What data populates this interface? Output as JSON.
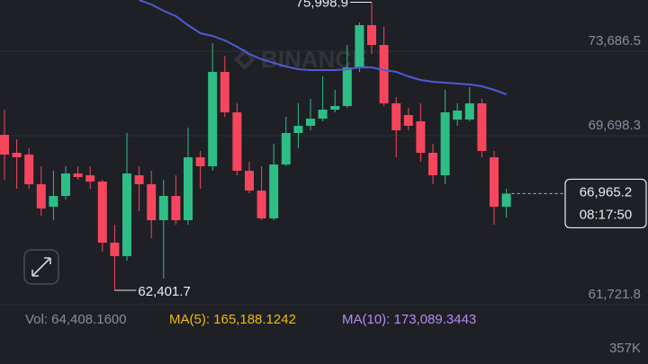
{
  "chart_data": {
    "type": "candlestick",
    "open": [
      69741,
      68892,
      68807,
      67407,
      66346,
      66855,
      67916,
      67831,
      67534,
      64649,
      64012,
      67831,
      67407,
      65710,
      66855,
      65710,
      68680,
      68255,
      72711,
      70801,
      68043,
      67110,
      65795,
      68340,
      69825,
      70165,
      70504,
      70929,
      71098,
      72923,
      74917,
      73984,
      71226,
      70674,
      70377,
      68892,
      67831,
      70462,
      70462,
      71226,
      68680,
      66346
    ],
    "high": [
      70929,
      69528,
      69104,
      68255,
      68043,
      68255,
      68255,
      68255,
      67619,
      65497,
      69825,
      68255,
      68043,
      67619,
      67831,
      70080,
      68977,
      74068,
      73474,
      71226,
      68468,
      68255,
      69316,
      70589,
      71226,
      71438,
      72498,
      71862,
      73984,
      75044,
      75998.9,
      74832,
      71523,
      71013,
      71226,
      69316,
      71862,
      71226,
      71989,
      71438,
      68977,
      67195
    ],
    "low": [
      67619,
      67195,
      67195,
      65922,
      65710,
      66686,
      67619,
      67195,
      64225,
      62401.7,
      63800,
      66134,
      64861,
      62952,
      65497,
      65497,
      67195,
      68043,
      70589,
      67831,
      66983,
      65710,
      65710,
      68255,
      69104,
      69953,
      70377,
      70801,
      71013,
      72711,
      73559,
      71098,
      68680,
      69953,
      68468,
      67407,
      67407,
      70165,
      70377,
      68680,
      65497,
      65837
    ],
    "close": [
      68807,
      68680,
      67407,
      66261,
      66855,
      67916,
      67746,
      67534,
      64649,
      64012,
      67916,
      67407,
      65710,
      66855,
      65710,
      68680,
      68255,
      72711,
      70801,
      68043,
      67110,
      65795,
      68340,
      69825,
      70165,
      70504,
      70929,
      71098,
      72923,
      74917,
      73984,
      71226,
      69953,
      70165,
      68892,
      67831,
      70801,
      70886,
      71226,
      68977,
      66346,
      66965.2
    ],
    "up_color": "#2ebd85",
    "down_color": "#f6465d",
    "ma_line": {
      "color": "#4f5bd5",
      "values": [
        null,
        null,
        null,
        null,
        null,
        null,
        null,
        null,
        null,
        null,
        null,
        76105,
        75893,
        75596,
        75341,
        74917,
        74535,
        74408,
        74196,
        73899,
        73559,
        73305,
        73135,
        72965,
        72838,
        72795,
        72795,
        72795,
        72838,
        72923,
        72923,
        72795,
        72711,
        72498,
        72329,
        72244,
        72201,
        72159,
        72116,
        72031,
        71862,
        71650
      ]
    },
    "ylim": [
      61467,
      76105
    ],
    "yticks": [
      {
        "value": 73686.5,
        "label": "73,686.5"
      },
      {
        "value": 69698.3,
        "label": "69,698.3"
      },
      {
        "value": 61721.8,
        "label": "61,721.8"
      }
    ],
    "grid": true,
    "high_label": "75,998.9",
    "low_label": "62,401.7",
    "last_price_label": "66,965.2",
    "countdown": "08:17:50",
    "watermark": "BINANCE",
    "vol_text": "Vol: 64,408.1600",
    "ma5_text": "MA(5): 165,188.1242",
    "ma10_text": "MA(10): 173,089.3443",
    "vol_axis_label": "357K"
  }
}
